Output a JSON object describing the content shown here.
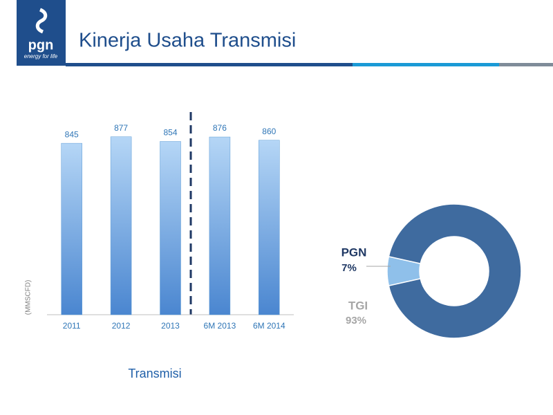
{
  "header": {
    "logo": "pgn",
    "tagline": "energy for life",
    "title": "Kinerja Usaha Transmisi"
  },
  "chart_data": [
    {
      "type": "bar",
      "title": "Transmisi",
      "y_label": "(MMSCFD)",
      "categories": [
        "2011",
        "2012",
        "2013",
        "6M 2013",
        "6M 2014"
      ],
      "values": [
        845,
        877,
        854,
        876,
        860
      ],
      "color": "#5b9bd5",
      "ylim": [
        0,
        900
      ],
      "grid": false
    },
    {
      "type": "donut",
      "categories": [
        "PGN",
        "TGI"
      ],
      "values": [
        7,
        93
      ],
      "value_labels": [
        "7%",
        "93%"
      ],
      "colors": [
        "#8fc0ea",
        "#3f6b9f"
      ]
    }
  ]
}
